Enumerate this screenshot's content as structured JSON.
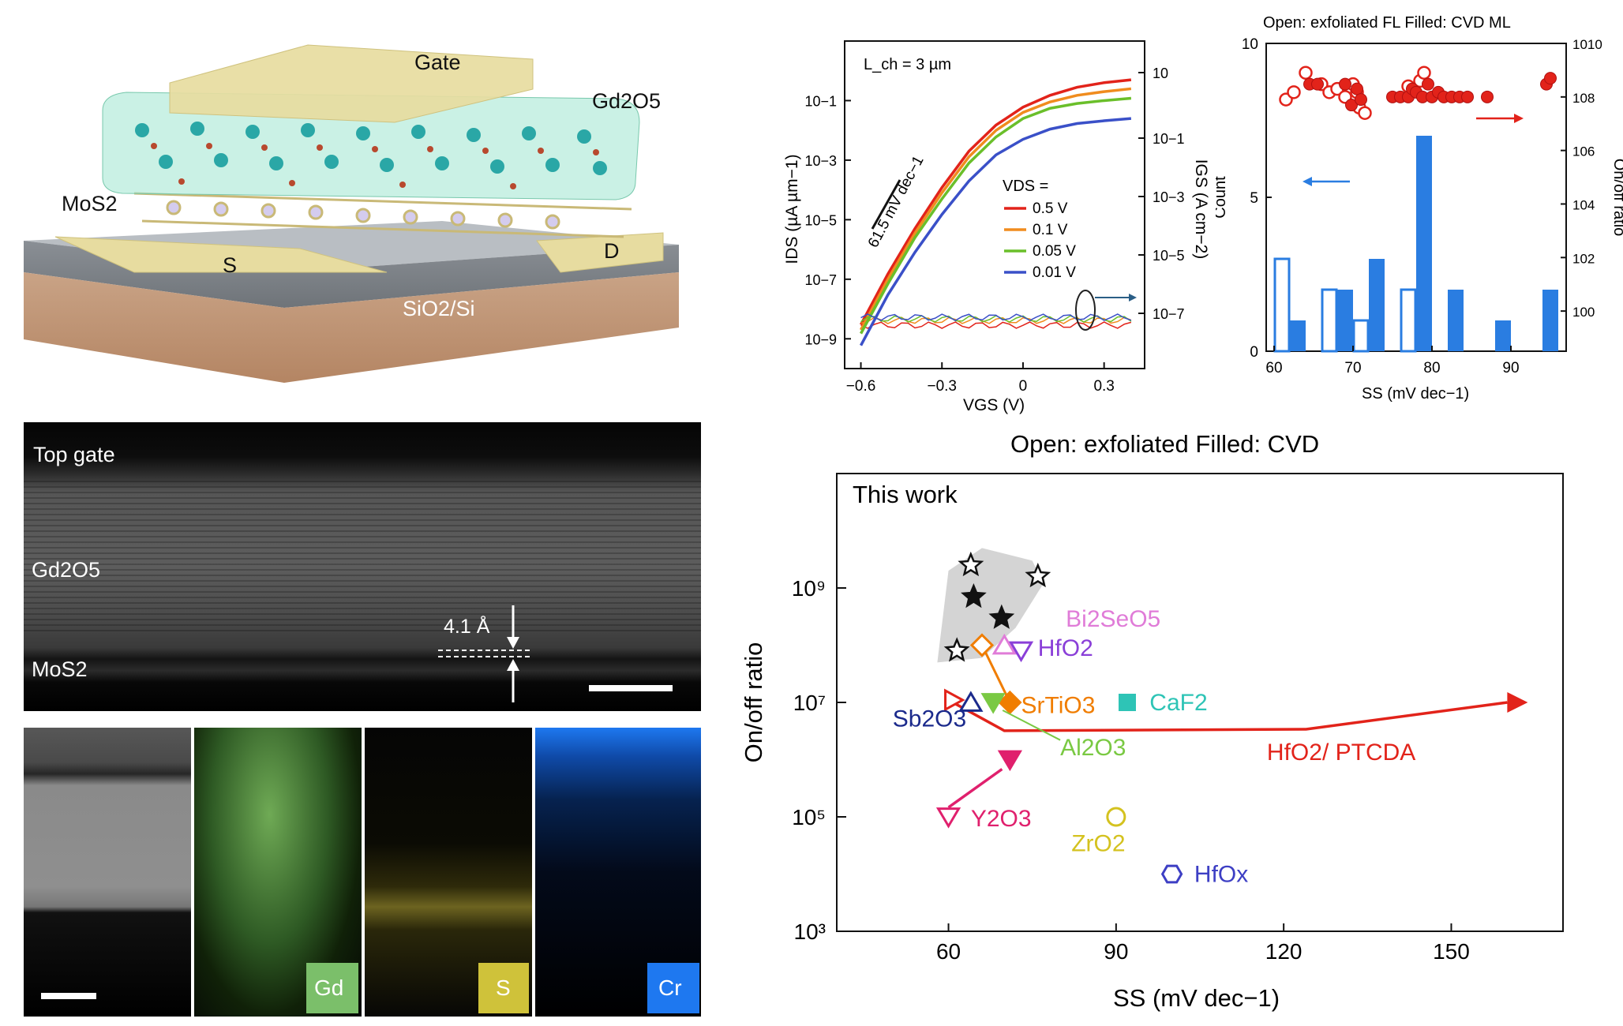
{
  "schematic": {
    "gate": "Gate",
    "oxide": "Gd2O5",
    "channel": "MoS2",
    "source": "S",
    "drain": "D",
    "substrate": "SiO2/Si"
  },
  "tem": {
    "top_gate": "Top gate",
    "oxide": "Gd2O5",
    "spacing": "4.1 Å",
    "channel": "MoS2"
  },
  "eds": {
    "maps": [
      "Gd",
      "S",
      "Cr"
    ],
    "colors": {
      "Gd": "#7bbf6a",
      "S": "#cfc23a",
      "Cr": "#1e78f0"
    }
  },
  "chart_data": [
    {
      "type": "line",
      "annotation_length": "L_ch = 3 µm",
      "annotation_slope": "61.5 mV dec−1",
      "xlabel": "VGS (V)",
      "ylabel": "IDS (µA µm−1)",
      "y2label": "IGS (A cm−2)",
      "xlim": [
        -0.66,
        0.45
      ],
      "ylim": [
        1e-10,
        10
      ],
      "y_scale": "log",
      "x_ticks": [
        "−0.6",
        "−0.3",
        "0",
        "0.3"
      ],
      "y_ticks": [
        "10−9",
        "10−7",
        "10−5",
        "10−3",
        "10−1"
      ],
      "y2_ticks": [
        "10−7",
        "10−5",
        "10−3",
        "10−1",
        "10"
      ],
      "legend_title": "VDS =",
      "legend_position": "center-right",
      "series": [
        {
          "name": "0.5 V",
          "color": "#e2231a",
          "x": [
            -0.6,
            -0.5,
            -0.4,
            -0.3,
            -0.2,
            -0.1,
            0.0,
            0.1,
            0.2,
            0.3,
            0.4
          ],
          "y": [
            3e-09,
            1.5e-07,
            5e-06,
            0.00012,
            0.002,
            0.015,
            0.06,
            0.15,
            0.28,
            0.4,
            0.5
          ]
        },
        {
          "name": "0.1 V",
          "color": "#f08c1e",
          "x": [
            -0.6,
            -0.5,
            -0.4,
            -0.3,
            -0.2,
            -0.1,
            0.0,
            0.1,
            0.2,
            0.3,
            0.4
          ],
          "y": [
            2e-09,
            1e-07,
            3.5e-06,
            8e-05,
            0.0013,
            0.01,
            0.04,
            0.09,
            0.15,
            0.2,
            0.25
          ]
        },
        {
          "name": "0.05 V",
          "color": "#6abf2a",
          "x": [
            -0.6,
            -0.5,
            -0.4,
            -0.3,
            -0.2,
            -0.1,
            0.0,
            0.1,
            0.2,
            0.3,
            0.4
          ],
          "y": [
            1.5e-09,
            7e-08,
            2.5e-06,
            5e-05,
            0.0008,
            0.006,
            0.025,
            0.055,
            0.08,
            0.1,
            0.12
          ]
        },
        {
          "name": "0.01 V",
          "color": "#3a50c8",
          "x": [
            -0.6,
            -0.5,
            -0.4,
            -0.3,
            -0.2,
            -0.1,
            0.0,
            0.1,
            0.2,
            0.3,
            0.4
          ],
          "y": [
            6e-10,
            3e-08,
            8e-07,
            1.5e-05,
            0.0002,
            0.0015,
            0.005,
            0.011,
            0.017,
            0.021,
            0.025
          ]
        }
      ]
    },
    {
      "type": "bar",
      "title": "Open: exfoliated FL  Filled: CVD ML",
      "xlabel": "SS (mV dec−1)",
      "ylabel": "Count",
      "y2label": "On/off ratio",
      "xlim": [
        59,
        97
      ],
      "ylim": [
        0,
        10
      ],
      "x_ticks": [
        "60",
        "70",
        "80",
        "90"
      ],
      "y_ticks": [
        "0",
        "5",
        "10"
      ],
      "y2_ticks": [
        "100",
        "102",
        "104",
        "106",
        "108",
        "1010"
      ],
      "bar_color": "#2a7de1",
      "histogram": {
        "bin_width": 2,
        "open_bins": [
          {
            "x": 61,
            "count": 3
          },
          {
            "x": 67,
            "count": 2
          },
          {
            "x": 71,
            "count": 1
          },
          {
            "x": 77,
            "count": 2
          }
        ],
        "filled_bins": [
          {
            "x": 63,
            "count": 1
          },
          {
            "x": 69,
            "count": 2
          },
          {
            "x": 73,
            "count": 3
          },
          {
            "x": 79,
            "count": 7
          },
          {
            "x": 83,
            "count": 2
          },
          {
            "x": 89,
            "count": 1
          },
          {
            "x": 95,
            "count": 2
          }
        ]
      },
      "ratio_points_open": [
        [
          61.5,
          80000000.0
        ],
        [
          62.5,
          150000000.0
        ],
        [
          64,
          800000000.0
        ],
        [
          66,
          300000000.0
        ],
        [
          67,
          150000000.0
        ],
        [
          68,
          200000000.0
        ],
        [
          69,
          100000000.0
        ],
        [
          70,
          300000000.0
        ],
        [
          70.5,
          150000000.0
        ],
        [
          70.8,
          40000000.0
        ],
        [
          71.5,
          25000000.0
        ],
        [
          77,
          250000000.0
        ],
        [
          78.5,
          400000000.0
        ],
        [
          79,
          800000000.0
        ]
      ],
      "ratio_points_filled": [
        [
          64.5,
          300000000.0
        ],
        [
          65.5,
          300000000.0
        ],
        [
          69,
          300000000.0
        ],
        [
          69.8,
          50000000.0
        ],
        [
          70.5,
          200000000.0
        ],
        [
          71,
          80000000.0
        ],
        [
          75,
          100000000.0
        ],
        [
          76,
          100000000.0
        ],
        [
          77,
          100000000.0
        ],
        [
          77.5,
          200000000.0
        ],
        [
          78,
          150000000.0
        ],
        [
          78.8,
          100000000.0
        ],
        [
          79.5,
          300000000.0
        ],
        [
          80,
          100000000.0
        ],
        [
          80.8,
          150000000.0
        ],
        [
          81.5,
          100000000.0
        ],
        [
          82.5,
          100000000.0
        ],
        [
          83.5,
          100000000.0
        ],
        [
          84.5,
          100000000.0
        ],
        [
          87,
          100000000.0
        ],
        [
          94.5,
          300000000.0
        ],
        [
          95,
          500000000.0
        ]
      ]
    },
    {
      "type": "scatter",
      "title": "Open: exfoliated   Filled: CVD",
      "annotation": "This work",
      "xlabel": "SS (mV dec−1)",
      "ylabel": "On/off ratio",
      "xlim": [
        40,
        170
      ],
      "ylim": [
        1000,
        100000000000.0
      ],
      "y_scale": "log",
      "x_ticks": [
        "60",
        "90",
        "120",
        "150"
      ],
      "y_ticks": [
        "10³",
        "10⁵",
        "10⁷",
        "10⁹"
      ],
      "this_work_open": [
        [
          64,
          2500000000.0
        ],
        [
          76,
          1600000000.0
        ],
        [
          61.5,
          80000000.0
        ]
      ],
      "this_work_filled": [
        [
          64.5,
          700000000.0
        ],
        [
          69.5,
          300000000.0
        ]
      ],
      "materials": [
        {
          "name": "Bi2SeO5",
          "color": "#e07cd8",
          "x": 70,
          "y": 100000000.0
        },
        {
          "name": "HfO2",
          "color": "#8a3fd8",
          "x": 73,
          "y": 80000000.0
        },
        {
          "name": "SrTiO3",
          "color": "#f07d00",
          "x_open": 66,
          "y_open": 100000000.0,
          "x_filled": 71,
          "y_filled": 10000000.0
        },
        {
          "name": "CaF2",
          "color": "#2ec4b6",
          "x": 92,
          "y": 10000000.0
        },
        {
          "name": "Al2O3",
          "color": "#7ac943",
          "x": 68,
          "y": 10000000.0
        },
        {
          "name": "Sb2O3",
          "color": "#1b2a8c",
          "x": 64,
          "y": 10000000.0
        },
        {
          "name": "HfO2/ PTCDA",
          "color": "#e2231a",
          "x_start": 60,
          "y_start": 11000000.0,
          "x_end": 162,
          "y_end": 10000000.0
        },
        {
          "name": "Y2O3",
          "color": "#e0206d",
          "x_start": 60,
          "y_start": 100000.0,
          "x_end": 71,
          "y_end": 1000000.0
        },
        {
          "name": "ZrO2",
          "color": "#d4c21f",
          "x": 90,
          "y": 100000.0
        },
        {
          "name": "HfOx",
          "color": "#3d3fc4",
          "x": 100,
          "y": 10000.0
        }
      ]
    }
  ]
}
